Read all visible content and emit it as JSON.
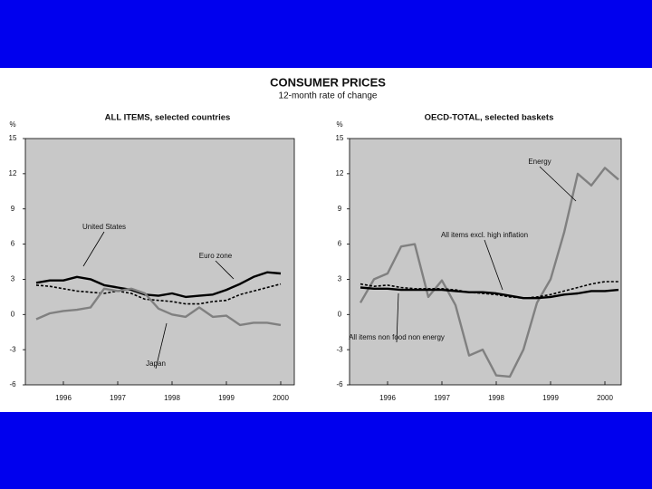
{
  "title": "CONSUMER PRICES",
  "subtitle": "12-month rate of change",
  "chart_data": [
    {
      "type": "line",
      "title": "ALL ITEMS, selected countries",
      "ylabel": "%",
      "x": [
        1996,
        1996.25,
        1996.5,
        1996.75,
        1997,
        1997.25,
        1997.5,
        1997.75,
        1998,
        1998.25,
        1998.5,
        1998.75,
        1999,
        1999.25,
        1999.5,
        1999.75,
        2000,
        2000.25,
        2000.5
      ],
      "series": [
        {
          "name": "United States",
          "color": "#000000",
          "style": "solid",
          "values": [
            2.7,
            2.9,
            2.9,
            3.2,
            3.0,
            2.5,
            2.3,
            2.1,
            1.7,
            1.6,
            1.8,
            1.5,
            1.6,
            1.7,
            2.1,
            2.6,
            3.2,
            3.6,
            3.5
          ]
        },
        {
          "name": "Euro zone",
          "color": "#000000",
          "style": "dashed",
          "values": [
            2.5,
            2.4,
            2.2,
            2.0,
            1.9,
            1.8,
            2.0,
            1.8,
            1.3,
            1.2,
            1.1,
            0.9,
            0.9,
            1.1,
            1.2,
            1.7,
            2.0,
            2.3,
            2.6
          ]
        },
        {
          "name": "Japan",
          "color": "#808080",
          "style": "solid",
          "values": [
            -0.4,
            0.1,
            0.3,
            0.4,
            0.6,
            2.2,
            2.0,
            2.2,
            1.8,
            0.5,
            0.0,
            -0.2,
            0.6,
            -0.2,
            -0.1,
            -0.9,
            -0.7,
            -0.7,
            -0.9
          ]
        }
      ],
      "xlim": [
        1995.8,
        2000.75
      ],
      "xticks": [
        {
          "value": 1996.5,
          "label": "1996"
        },
        {
          "value": 1997.5,
          "label": "1997"
        },
        {
          "value": 1998.5,
          "label": "1998"
        },
        {
          "value": 1999.5,
          "label": "1999"
        },
        {
          "value": 2000.5,
          "label": "2000"
        }
      ],
      "ylim": [
        -6,
        15
      ],
      "yticks": [
        15,
        12,
        9,
        6,
        3,
        0,
        -3,
        -6
      ],
      "grid": false
    },
    {
      "type": "line",
      "title": "OECD-TOTAL, selected baskets",
      "ylabel": "%",
      "x": [
        1996,
        1996.25,
        1996.5,
        1996.75,
        1997,
        1997.25,
        1997.5,
        1997.75,
        1998,
        1998.25,
        1998.5,
        1998.75,
        1999,
        1999.25,
        1999.5,
        1999.75,
        2000,
        2000.25,
        2000.5,
        2000.75
      ],
      "series": [
        {
          "name": "Energy",
          "color": "#808080",
          "style": "solid",
          "values": [
            1.0,
            3.0,
            3.5,
            5.8,
            6.0,
            1.5,
            2.9,
            0.8,
            -3.5,
            -3.0,
            -5.2,
            -5.3,
            -3.0,
            1.0,
            3.0,
            7.0,
            12.0,
            11.0,
            12.5,
            11.5
          ]
        },
        {
          "name": "All items excl. high inflation",
          "color": "#000000",
          "style": "dashed",
          "values": [
            2.6,
            2.4,
            2.5,
            2.3,
            2.2,
            2.2,
            2.2,
            2.1,
            1.9,
            1.8,
            1.7,
            1.5,
            1.4,
            1.5,
            1.7,
            2.0,
            2.3,
            2.6,
            2.8,
            2.8
          ]
        },
        {
          "name": "All items non food non energy",
          "color": "#000000",
          "style": "solid",
          "values": [
            2.3,
            2.2,
            2.2,
            2.1,
            2.1,
            2.1,
            2.1,
            2.0,
            1.9,
            1.9,
            1.8,
            1.6,
            1.4,
            1.4,
            1.5,
            1.7,
            1.8,
            2.0,
            2.0,
            2.1
          ]
        }
      ],
      "xlim": [
        1995.8,
        2000.8
      ],
      "xticks": [
        {
          "value": 1996.5,
          "label": "1996"
        },
        {
          "value": 1997.5,
          "label": "1997"
        },
        {
          "value": 1998.5,
          "label": "1998"
        },
        {
          "value": 1999.5,
          "label": "1999"
        },
        {
          "value": 2000.5,
          "label": "2000"
        }
      ],
      "ylim": [
        -6,
        15
      ],
      "yticks": [
        15,
        12,
        9,
        6,
        3,
        0,
        -3,
        -6
      ],
      "grid": false
    }
  ]
}
